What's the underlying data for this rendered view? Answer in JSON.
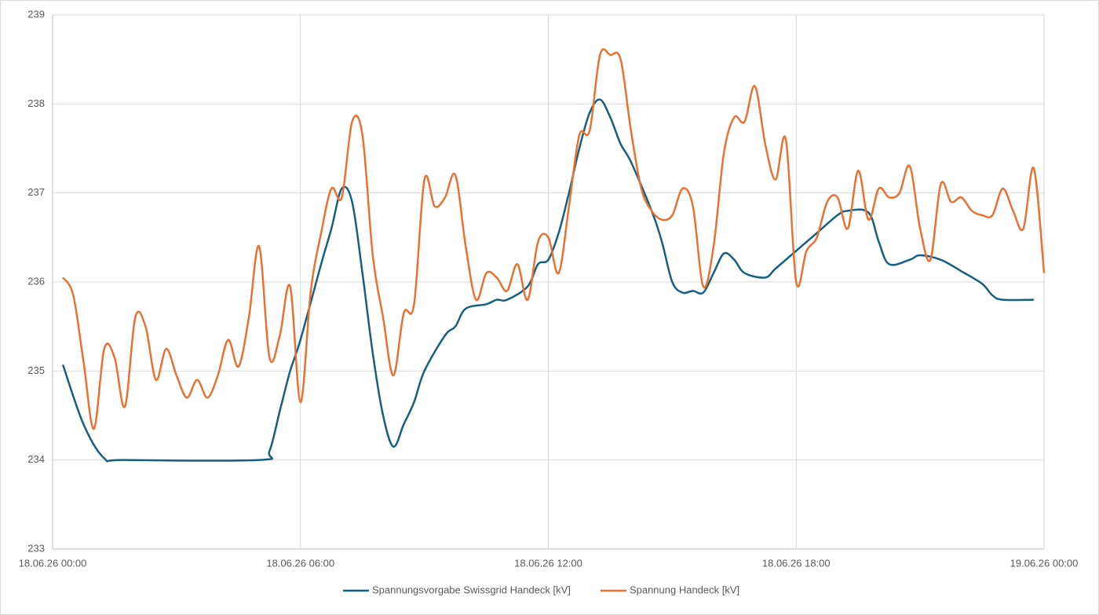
{
  "chart_data": {
    "type": "line",
    "xlim": [
      "18.06.26 00:00",
      "19.06.26 00:00"
    ],
    "xticks": [
      "18.06.26 00:00",
      "18.06.26 06:00",
      "18.06.26 12:00",
      "18.06.26 18:00",
      "19.06.26 00:00"
    ],
    "ylim": [
      233,
      239
    ],
    "yticks": [
      233,
      234,
      235,
      236,
      237,
      238,
      239
    ],
    "grid": true,
    "legend": "bottom",
    "series": [
      {
        "name": "Spannungsvorgabe Swissgrid Handeck [kV]",
        "color": "#156082",
        "x": [
          "18.06.26 00:15",
          "18.06.26 00:45",
          "18.06.26 01:15",
          "18.06.26 01:45",
          "18.06.26 05:00",
          "18.06.26 05:15",
          "18.06.26 05:30",
          "18.06.26 05:45",
          "18.06.26 06:00",
          "18.06.26 06:30",
          "18.06.26 06:45",
          "18.06.26 07:00",
          "18.06.26 07:15",
          "18.06.26 07:30",
          "18.06.26 07:45",
          "18.06.26 08:00",
          "18.06.26 08:15",
          "18.06.26 08:30",
          "18.06.26 08:45",
          "18.06.26 09:00",
          "18.06.26 09:30",
          "18.06.26 09:45",
          "18.06.26 10:00",
          "18.06.26 10:30",
          "18.06.26 10:45",
          "18.06.26 11:00",
          "18.06.26 11:30",
          "18.06.26 11:45",
          "18.06.26 12:00",
          "18.06.26 12:15",
          "18.06.26 12:30",
          "18.06.26 12:45",
          "18.06.26 13:00",
          "18.06.26 13:15",
          "18.06.26 13:30",
          "18.06.26 13:45",
          "18.06.26 14:00",
          "18.06.26 14:30",
          "18.06.26 14:45",
          "18.06.26 15:00",
          "18.06.26 15:15",
          "18.06.26 15:30",
          "18.06.26 15:45",
          "18.06.26 16:00",
          "18.06.26 16:15",
          "18.06.26 16:30",
          "18.06.26 16:45",
          "18.06.26 17:15",
          "18.06.26 17:30",
          "18.06.26 18:00",
          "18.06.26 18:30",
          "18.06.26 19:00",
          "18.06.26 19:15",
          "18.06.26 19:45",
          "18.06.26 20:00",
          "18.06.26 20:15",
          "18.06.26 20:45",
          "18.06.26 21:00",
          "18.06.26 21:30",
          "18.06.26 22:00",
          "18.06.26 22:30",
          "18.06.26 22:45",
          "18.06.26 23:00",
          "18.06.26 23:45"
        ],
        "values": [
          235.07,
          234.4,
          234.02,
          234.0,
          234.0,
          234.1,
          234.55,
          235.0,
          235.35,
          236.2,
          236.6,
          237.05,
          236.9,
          236.1,
          235.2,
          234.5,
          234.15,
          234.4,
          234.65,
          235.0,
          235.4,
          235.5,
          235.7,
          235.75,
          235.8,
          235.8,
          235.95,
          236.2,
          236.25,
          236.55,
          237.0,
          237.5,
          237.9,
          238.05,
          237.85,
          237.55,
          237.35,
          236.8,
          236.45,
          236.0,
          235.88,
          235.9,
          235.88,
          236.1,
          236.32,
          236.25,
          236.1,
          236.05,
          236.15,
          236.35,
          236.55,
          236.75,
          236.8,
          236.78,
          236.45,
          236.2,
          236.25,
          236.3,
          236.25,
          236.12,
          235.98,
          235.85,
          235.8,
          235.8
        ]
      },
      {
        "name": "Spannung Handeck [kV]",
        "color": "#e97132",
        "x": [
          "18.06.26 00:15",
          "18.06.26 00:30",
          "18.06.26 00:45",
          "18.06.26 01:00",
          "18.06.26 01:15",
          "18.06.26 01:30",
          "18.06.26 01:45",
          "18.06.26 02:00",
          "18.06.26 02:15",
          "18.06.26 02:30",
          "18.06.26 02:45",
          "18.06.26 03:00",
          "18.06.26 03:15",
          "18.06.26 03:30",
          "18.06.26 03:45",
          "18.06.26 04:00",
          "18.06.26 04:15",
          "18.06.26 04:30",
          "18.06.26 04:45",
          "18.06.26 05:00",
          "18.06.26 05:15",
          "18.06.26 05:30",
          "18.06.26 05:45",
          "18.06.26 06:00",
          "18.06.26 06:15",
          "18.06.26 06:30",
          "18.06.26 06:45",
          "18.06.26 07:00",
          "18.06.26 07:15",
          "18.06.26 07:30",
          "18.06.26 07:45",
          "18.06.26 08:00",
          "18.06.26 08:15",
          "18.06.26 08:30",
          "18.06.26 08:45",
          "18.06.26 09:00",
          "18.06.26 09:15",
          "18.06.26 09:30",
          "18.06.26 09:45",
          "18.06.26 10:00",
          "18.06.26 10:15",
          "18.06.26 10:30",
          "18.06.26 10:45",
          "18.06.26 11:00",
          "18.06.26 11:15",
          "18.06.26 11:30",
          "18.06.26 11:45",
          "18.06.26 12:00",
          "18.06.26 12:15",
          "18.06.26 12:30",
          "18.06.26 12:45",
          "18.06.26 13:00",
          "18.06.26 13:15",
          "18.06.26 13:30",
          "18.06.26 13:45",
          "18.06.26 14:00",
          "18.06.26 14:15",
          "18.06.26 14:30",
          "18.06.26 14:45",
          "18.06.26 15:00",
          "18.06.26 15:15",
          "18.06.26 15:30",
          "18.06.26 15:45",
          "18.06.26 16:00",
          "18.06.26 16:15",
          "18.06.26 16:30",
          "18.06.26 16:45",
          "18.06.26 17:00",
          "18.06.26 17:15",
          "18.06.26 17:30",
          "18.06.26 17:45",
          "18.06.26 18:00",
          "18.06.26 18:15",
          "18.06.26 18:30",
          "18.06.26 18:45",
          "18.06.26 19:00",
          "18.06.26 19:15",
          "18.06.26 19:30",
          "18.06.26 19:45",
          "18.06.26 20:00",
          "18.06.26 20:15",
          "18.06.26 20:30",
          "18.06.26 20:45",
          "18.06.26 21:00",
          "18.06.26 21:15",
          "18.06.26 21:30",
          "18.06.26 21:45",
          "18.06.26 22:00",
          "18.06.26 22:15",
          "18.06.26 22:30",
          "18.06.26 22:45",
          "18.06.26 23:00",
          "18.06.26 23:15",
          "18.06.26 23:30",
          "18.06.26 23:45",
          "19.06.26 00:00"
        ],
        "values": [
          236.05,
          235.85,
          235.1,
          234.35,
          235.25,
          235.15,
          234.6,
          235.6,
          235.5,
          234.9,
          235.25,
          234.95,
          234.7,
          234.9,
          234.7,
          234.95,
          235.35,
          235.05,
          235.6,
          236.4,
          235.15,
          235.4,
          235.95,
          234.65,
          235.9,
          236.55,
          237.05,
          236.95,
          237.8,
          237.65,
          236.3,
          235.6,
          234.95,
          235.65,
          235.75,
          237.15,
          236.85,
          236.95,
          237.2,
          236.4,
          235.8,
          236.1,
          236.05,
          235.9,
          236.2,
          235.8,
          236.45,
          236.5,
          236.1,
          236.85,
          237.65,
          237.7,
          238.55,
          238.55,
          238.5,
          237.7,
          237.05,
          236.8,
          236.7,
          236.75,
          237.05,
          236.85,
          235.95,
          236.4,
          237.45,
          237.85,
          237.8,
          238.2,
          237.55,
          237.15,
          237.6,
          236.0,
          236.35,
          236.5,
          236.9,
          236.95,
          236.6,
          237.25,
          236.7,
          237.05,
          236.95,
          237.0,
          237.3,
          236.6,
          236.25,
          237.1,
          236.9,
          236.95,
          236.8,
          236.75,
          236.75,
          237.05,
          236.8,
          236.6,
          237.28,
          236.1
        ]
      }
    ]
  }
}
